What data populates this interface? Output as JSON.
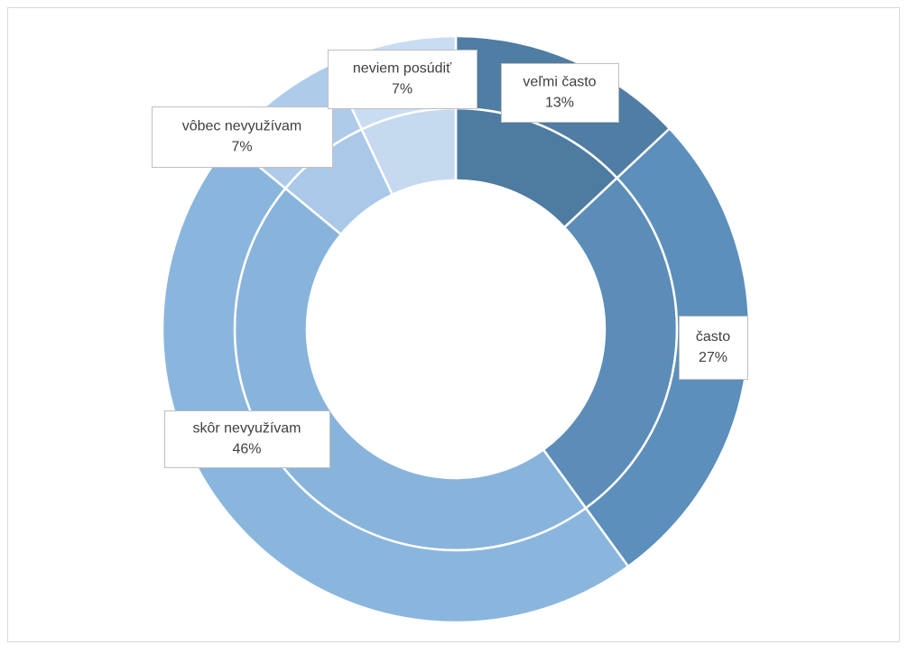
{
  "chart_data": {
    "type": "donut",
    "categories": [
      "veľmi často",
      "často",
      "skôr nevyužívam",
      "vôbec nevyužívam",
      "neviem posúdiť"
    ],
    "series": [
      {
        "colors": [
          "#4e7ba0",
          "#5b8db8",
          "#88b4dc",
          "#aac9e8",
          "#c5d9ef"
        ],
        "values": [
          13,
          27,
          46,
          7,
          7
        ],
        "value_labels": [
          "13%",
          "27%",
          "46%",
          "7%",
          "7%"
        ]
      },
      {
        "colors": [
          "#4f7da3",
          "#5c8fbb",
          "#8ab6de",
          "#aecbea",
          "#c9ddf2"
        ],
        "values": [
          13,
          27,
          46,
          7,
          7
        ]
      }
    ]
  }
}
